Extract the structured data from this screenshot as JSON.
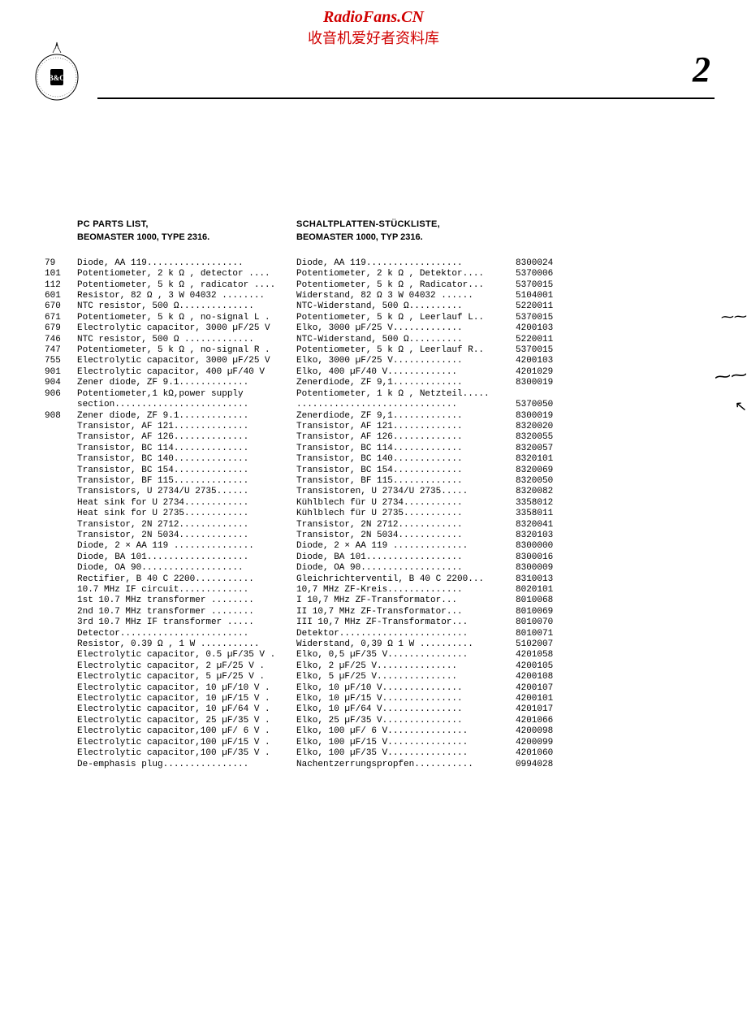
{
  "watermark": {
    "line1": "RadioFans.CN",
    "line2": "收音机爱好者资料库",
    "color": "#d00000"
  },
  "page_number": "2",
  "header": {
    "en_title": "PC PARTS LIST,",
    "en_subtitle": "BEOMASTER 1000, TYPE 2316.",
    "de_title": "SCHALTPLATTEN-STÜCKLISTE,",
    "de_subtitle": "BEOMASTER 1000, TYP 2316."
  },
  "rows": [
    {
      "n": "79",
      "en": "Diode, AA 119..................",
      "de": "Diode, AA 119..................",
      "p": "8300024"
    },
    {
      "n": "101",
      "en": "Potentiometer, 2 k Ω , detector ....",
      "de": "Potentiometer, 2 k Ω , Detektor....",
      "p": "5370006"
    },
    {
      "n": "112",
      "en": "Potentiometer, 5 k Ω , radicator ....",
      "de": "Potentiometer, 5 k Ω , Radicator...",
      "p": "5370015"
    },
    {
      "n": "601",
      "en": "Resistor, 82 Ω , 3 W 04032 ........",
      "de": "Widerstand, 82 Ω 3 W 04032 ......",
      "p": "5104001"
    },
    {
      "n": "670",
      "en": "NTC resistor, 500 Ω..............",
      "de": "NTC-Widerstand, 500 Ω..........",
      "p": "5220011"
    },
    {
      "n": "671",
      "en": "Potentiometer, 5 k Ω , no-signal L .",
      "de": "Potentiometer, 5 k Ω , Leerlauf L..",
      "p": "5370015"
    },
    {
      "n": "679",
      "en": "Electrolytic capacitor, 3000 µF/25 V",
      "de": "Elko, 3000 µF/25 V.............",
      "p": "4200103"
    },
    {
      "n": "746",
      "en": "NTC resistor, 500 Ω .............",
      "de": "NTC-Widerstand, 500 Ω..........",
      "p": "5220011"
    },
    {
      "n": "747",
      "en": "Potentiometer, 5 k Ω , no-signal R .",
      "de": "Potentiometer, 5 k Ω , Leerlauf R..",
      "p": "5370015"
    },
    {
      "n": "755",
      "en": "Electrolytic capacitor, 3000 µF/25 V",
      "de": "Elko, 3000 µF/25 V.............",
      "p": "4200103"
    },
    {
      "n": "901",
      "en": "Electrolytic capacitor, 400 µF/40 V",
      "de": "Elko,  400 µF/40 V.............",
      "p": "4201029"
    },
    {
      "n": "904",
      "en": "Zener diode, ZF 9.1.............",
      "de": "Zenerdiode, ZF 9,1.............",
      "p": "8300019"
    },
    {
      "n": "906",
      "en": "Potentiometer,1 kΩ,power supply",
      "de": "Potentiometer, 1 k Ω , Netzteil.....",
      "p": ""
    },
    {
      "n": "",
      "en": "section.........................",
      "de": "..............................",
      "p": "5370050"
    },
    {
      "n": "908",
      "en": "Zener diode, ZF 9.1.............",
      "de": "Zenerdiode, ZF 9,1.............",
      "p": "8300019"
    },
    {
      "n": "",
      "en": "Transistor, AF 121..............",
      "de": "Transistor, AF 121.............",
      "p": "8320020"
    },
    {
      "n": "",
      "en": "Transistor, AF 126..............",
      "de": "Transistor, AF 126.............",
      "p": "8320055"
    },
    {
      "n": "",
      "en": "Transistor, BC 114..............",
      "de": "Transistor, BC 114.............",
      "p": "8320057"
    },
    {
      "n": "",
      "en": "Transistor, BC 140..............",
      "de": "Transistor, BC 140.............",
      "p": "8320101"
    },
    {
      "n": "",
      "en": "Transistor, BC 154..............",
      "de": "Transistor, BC 154.............",
      "p": "8320069"
    },
    {
      "n": "",
      "en": "Transistor, BF 115..............",
      "de": "Transistor, BF 115.............",
      "p": "8320050"
    },
    {
      "n": "",
      "en": "Transistors, U 2734/U 2735......",
      "de": "Transistoren, U 2734/U 2735.....",
      "p": "8320082"
    },
    {
      "n": "",
      "en": "Heat sink for U 2734............",
      "de": "Kühlblech für U 2734...........",
      "p": "3358012"
    },
    {
      "n": "",
      "en": "Heat sink for U 2735............",
      "de": "Kühlblech für U 2735...........",
      "p": "3358011"
    },
    {
      "n": "",
      "en": "Transistor, 2N 2712.............",
      "de": "Transistor, 2N 2712............",
      "p": "8320041"
    },
    {
      "n": "",
      "en": "Transistor, 2N 5034.............",
      "de": "Transistor, 2N 5034............",
      "p": "8320103"
    },
    {
      "n": "",
      "en": "Diode, 2 × AA 119 ...............",
      "de": "Diode, 2 × AA 119 ..............",
      "p": "8300000"
    },
    {
      "n": "",
      "en": "Diode, BA 101...................",
      "de": "Diode, BA 101..................",
      "p": "8300016"
    },
    {
      "n": "",
      "en": "Diode, OA 90...................",
      "de": "Diode, OA 90...................",
      "p": "8300009"
    },
    {
      "n": "",
      "en": "Rectifier, B 40 C 2200...........",
      "de": "Gleichrichterventil, B 40 C 2200...",
      "p": "8310013"
    },
    {
      "n": "",
      "en": "10.7 MHz IF circuit.............",
      "de": "10,7 MHz ZF-Kreis..............",
      "p": "8020101"
    },
    {
      "n": "",
      "en": "1st 10.7 MHz transformer ........",
      "de": "I   10,7 MHz ZF-Transformator...",
      "p": "8010068"
    },
    {
      "n": "",
      "en": "2nd 10.7 MHz transformer ........",
      "de": "II  10,7 MHz ZF-Transformator...",
      "p": "8010069"
    },
    {
      "n": "",
      "en": "3rd 10.7 MHz IF transformer .....",
      "de": "III 10,7 MHz ZF-Transformator...",
      "p": "8010070"
    },
    {
      "n": "",
      "en": "Detector........................",
      "de": "Detektor........................",
      "p": "8010071"
    },
    {
      "n": "",
      "en": "Resistor, 0.39 Ω , 1 W ...........",
      "de": "Widerstand, 0,39 Ω 1 W ..........",
      "p": "5102007"
    },
    {
      "n": "",
      "en": "Electrolytic capacitor, 0.5 µF/35 V .",
      "de": "Elko, 0,5 µF/35 V...............",
      "p": "4201058"
    },
    {
      "n": "",
      "en": "Electrolytic capacitor,   2 µF/25 V .",
      "de": "Elko,   2 µF/25 V...............",
      "p": "4200105"
    },
    {
      "n": "",
      "en": "Electrolytic capacitor,   5 µF/25 V .",
      "de": "Elko,   5 µF/25 V...............",
      "p": "4200108"
    },
    {
      "n": "",
      "en": "Electrolytic capacitor,  10 µF/10 V .",
      "de": "Elko,  10 µF/10 V...............",
      "p": "4200107"
    },
    {
      "n": "",
      "en": "Electrolytic capacitor,  10 µF/15 V .",
      "de": "Elko,  10 µF/15 V...............",
      "p": "4200101"
    },
    {
      "n": "",
      "en": "Electrolytic capacitor,  10 µF/64 V .",
      "de": "Elko,  10 µF/64 V...............",
      "p": "4201017"
    },
    {
      "n": "",
      "en": "Electrolytic capacitor,  25 µF/35 V .",
      "de": "Elko,  25 µF/35 V...............",
      "p": "4201066"
    },
    {
      "n": "",
      "en": "Electrolytic capacitor,100 µF/  6 V .",
      "de": "Elko, 100 µF/  6 V...............",
      "p": "4200098"
    },
    {
      "n": "",
      "en": "Electrolytic capacitor,100 µF/15 V .",
      "de": "Elko, 100 µF/15 V...............",
      "p": "4200099"
    },
    {
      "n": "",
      "en": "Electrolytic capacitor,100 µF/35 V .",
      "de": "Elko, 100 µF/35 V...............",
      "p": "4201060"
    },
    {
      "n": "",
      "en": "De-emphasis plug................",
      "de": "Nachentzerrungspropfen...........",
      "p": "0994028"
    }
  ],
  "scribble1": "⁓⁓",
  "scribble2": "⁓⁓",
  "scribble3": "↖",
  "dash": "-"
}
